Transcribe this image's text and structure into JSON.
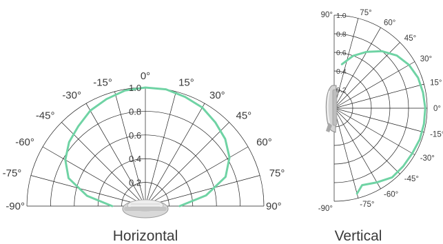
{
  "chart_data": [
    {
      "type": "line",
      "projection": "polar-half-upper",
      "title": "Horizontal",
      "angles_deg": [
        -90,
        -75,
        -60,
        -45,
        -30,
        -15,
        0,
        15,
        30,
        45,
        60,
        75,
        90
      ],
      "angle_labels": [
        "-90°",
        "-75°",
        "-60°",
        "-45°",
        "-30°",
        "-15°",
        "0°",
        "15°",
        "30°",
        "45°",
        "60°",
        "75°",
        "90°"
      ],
      "radial_ticks": [
        0.2,
        0.4,
        0.6,
        0.8,
        1.0
      ],
      "radial_labels": [
        "0.2",
        "0.4",
        "0.6",
        "0.8",
        "1.0"
      ],
      "rlim": [
        0,
        1.0
      ],
      "series": [
        {
          "color": "#6fd3a4",
          "points": [
            {
              "angle": -90,
              "r": 0.28
            },
            {
              "angle": -80,
              "r": 0.5
            },
            {
              "angle": -70,
              "r": 0.69
            },
            {
              "angle": -60,
              "r": 0.78
            },
            {
              "angle": -50,
              "r": 0.84
            },
            {
              "angle": -40,
              "r": 0.88
            },
            {
              "angle": -30,
              "r": 0.93
            },
            {
              "angle": -20,
              "r": 0.96
            },
            {
              "angle": -10,
              "r": 0.99
            },
            {
              "angle": 0,
              "r": 1.0
            },
            {
              "angle": 10,
              "r": 1.0
            },
            {
              "angle": 20,
              "r": 0.98
            },
            {
              "angle": 30,
              "r": 0.96
            },
            {
              "angle": 40,
              "r": 0.92
            },
            {
              "angle": 50,
              "r": 0.88
            },
            {
              "angle": 60,
              "r": 0.82
            },
            {
              "angle": 70,
              "r": 0.72
            },
            {
              "angle": 80,
              "r": 0.52
            },
            {
              "angle": 90,
              "r": 0.29
            }
          ]
        }
      ]
    },
    {
      "type": "line",
      "projection": "polar-half-right",
      "title": "Vertical",
      "angles_deg": [
        90,
        75,
        60,
        45,
        30,
        15,
        0,
        -15,
        -30,
        -45,
        -60,
        -75,
        -90
      ],
      "angle_labels": [
        "90°",
        "75°",
        "60°",
        "45°",
        "30°",
        "15°",
        "0°",
        "-15°",
        "-30°",
        "-45°",
        "-60°",
        "-75°",
        "-90°"
      ],
      "radial_ticks": [
        0.2,
        0.4,
        0.6,
        0.8,
        1.0
      ],
      "radial_labels": [
        "0.2",
        "0.4",
        "0.6",
        "0.8",
        "1.0"
      ],
      "rlim": [
        0,
        1.0
      ],
      "series": [
        {
          "color": "#6fd3a4",
          "points": [
            {
              "angle": 80,
              "r": 0.48
            },
            {
              "angle": 70,
              "r": 0.6
            },
            {
              "angle": 60,
              "r": 0.7
            },
            {
              "angle": 50,
              "r": 0.8
            },
            {
              "angle": 40,
              "r": 0.88
            },
            {
              "angle": 30,
              "r": 0.93
            },
            {
              "angle": 20,
              "r": 0.96
            },
            {
              "angle": 10,
              "r": 0.97
            },
            {
              "angle": 0,
              "r": 0.98
            },
            {
              "angle": -10,
              "r": 0.98
            },
            {
              "angle": -20,
              "r": 0.98
            },
            {
              "angle": -30,
              "r": 0.97
            },
            {
              "angle": -40,
              "r": 0.97
            },
            {
              "angle": -50,
              "r": 0.97
            },
            {
              "angle": -60,
              "r": 0.92
            },
            {
              "angle": -70,
              "r": 0.88
            },
            {
              "angle": -75,
              "r": 0.95
            }
          ]
        }
      ]
    }
  ]
}
